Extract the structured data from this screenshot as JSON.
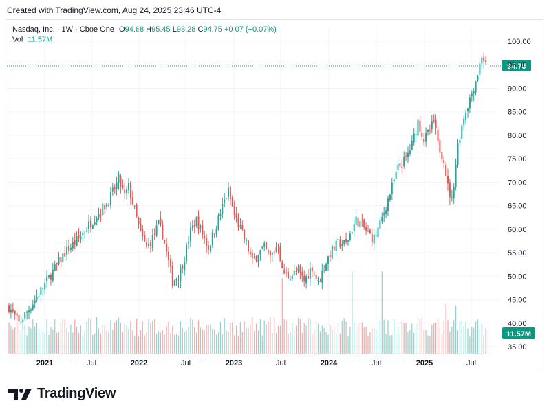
{
  "created_line": "Created with TradingView.com, Aug 24, 2025 23:46 UTC-4",
  "legend": {
    "symbol": "Nasdaq, Inc. · 1W · Cboe One",
    "o_label": "O",
    "o_value": "94.68",
    "h_label": "H",
    "h_value": "95.45",
    "l_label": "L",
    "l_value": "93.28",
    "c_label": "C",
    "c_value": "94.75",
    "change": "+0.07 (+0.07%)",
    "vol_label": "Vol",
    "vol_value": "11.57M"
  },
  "brand": "TradingView",
  "colors": {
    "up": "#26a69a",
    "down": "#ef5350",
    "badge": "#089981",
    "grid": "#f0f3fa"
  },
  "chart_data": {
    "type": "candlestick",
    "title": "Nasdaq, Inc. (NDAQ) weekly",
    "timeframe": "1W",
    "ylim": [
      33,
      101
    ],
    "y_ticks": [
      "100.00",
      "95.00",
      "90.00",
      "85.00",
      "80.00",
      "75.00",
      "70.00",
      "65.00",
      "60.00",
      "55.00",
      "50.00",
      "45.00",
      "40.00",
      "35.00"
    ],
    "x_ticks": [
      "2021",
      "Jul",
      "2022",
      "Jul",
      "2023",
      "Jul",
      "2024",
      "Jul",
      "2025",
      "Jul"
    ],
    "last_price": "94.75",
    "last_volume": "11.57M",
    "close_path": [
      [
        0,
        43.5
      ],
      [
        5,
        40
      ],
      [
        10,
        43
      ],
      [
        16,
        47
      ],
      [
        22,
        51
      ],
      [
        28,
        55
      ],
      [
        35,
        58
      ],
      [
        41,
        61.5
      ],
      [
        46,
        64
      ],
      [
        50,
        66
      ],
      [
        55,
        70.5
      ],
      [
        58,
        67
      ],
      [
        60,
        69
      ],
      [
        63,
        64
      ],
      [
        66,
        59
      ],
      [
        69,
        56
      ],
      [
        72,
        58
      ],
      [
        75,
        61
      ],
      [
        77,
        59
      ],
      [
        80,
        53
      ],
      [
        82,
        49
      ],
      [
        85,
        50
      ],
      [
        88,
        54
      ],
      [
        91,
        59.5
      ],
      [
        94,
        62
      ],
      [
        97,
        59
      ],
      [
        100,
        56
      ],
      [
        104,
        61
      ],
      [
        108,
        66
      ],
      [
        110,
        68
      ],
      [
        113,
        63
      ],
      [
        116,
        60
      ],
      [
        119,
        57
      ],
      [
        122,
        53
      ],
      [
        125,
        55
      ],
      [
        128,
        56
      ],
      [
        131,
        54
      ],
      [
        135,
        57
      ],
      [
        137,
        51
      ],
      [
        140,
        50
      ],
      [
        145,
        51
      ],
      [
        148,
        49
      ],
      [
        152,
        52
      ],
      [
        155,
        48.5
      ],
      [
        158,
        52
      ],
      [
        161,
        55
      ],
      [
        165,
        57
      ],
      [
        169,
        57
      ],
      [
        172,
        60
      ],
      [
        174,
        62
      ],
      [
        177,
        61
      ],
      [
        180,
        59
      ],
      [
        183,
        58
      ],
      [
        186,
        61
      ],
      [
        189,
        65
      ],
      [
        192,
        69
      ],
      [
        195,
        73
      ],
      [
        199,
        75
      ],
      [
        202,
        78
      ],
      [
        205,
        83
      ],
      [
        208,
        79
      ],
      [
        211,
        81
      ],
      [
        213,
        83
      ],
      [
        215,
        78
      ],
      [
        218,
        75
      ],
      [
        220,
        69
      ],
      [
        222,
        66
      ],
      [
        225,
        78
      ],
      [
        228,
        84
      ],
      [
        232,
        89
      ],
      [
        235,
        93
      ],
      [
        237,
        97
      ],
      [
        238,
        96
      ],
      [
        239,
        94.75
      ]
    ]
  }
}
